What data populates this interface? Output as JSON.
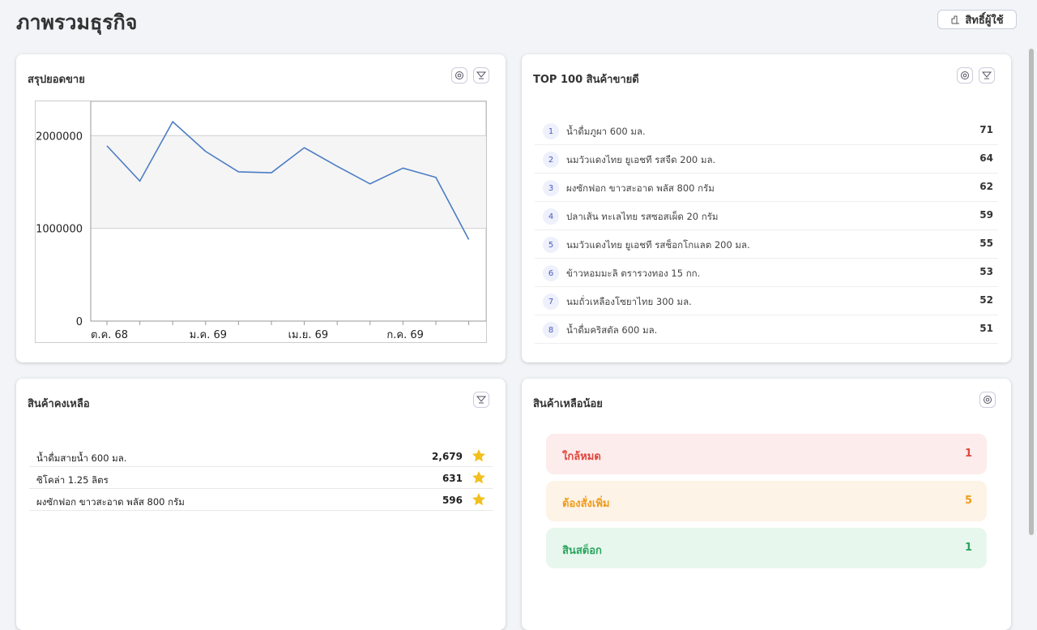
{
  "header": {
    "title": "ภาพรวมธุรกิจ",
    "permission_button": "สิทธิ์ผู้ใช้"
  },
  "sales_summary": {
    "title": "สรุปยอดขาย",
    "chart": {
      "type": "line",
      "categories": [
        "ต.ค. 68",
        null,
        null,
        "ม.ค. 69",
        null,
        null,
        "เม.ย. 69",
        null,
        null,
        "ก.ค. 69",
        null,
        null
      ],
      "values": [
        1890000,
        1510000,
        2150000,
        1830000,
        1610000,
        1600000,
        1870000,
        1670000,
        1480000,
        1650000,
        1550000,
        880000
      ],
      "color": "#4a7cc4",
      "ylim": [
        0,
        2370000
      ],
      "yticks": [
        0,
        1000000,
        2000000
      ],
      "grid": true
    }
  },
  "top_products": {
    "title": "TOP 100 สินค้าขายดี",
    "rows": [
      [
        "1",
        "น้ำดื่มภูผา 600 มล.",
        "71"
      ],
      [
        "2",
        "นมวัวแดงไทย ยูเอชที รสจืด 200 มล.",
        "64"
      ],
      [
        "3",
        "ผงซักฟอก ขาวสะอาด พลัส 800 กรัม",
        "62"
      ],
      [
        "4",
        "ปลาเส้น ทะเลไทย รสซอสเผ็ด 20 กรัม",
        "59"
      ],
      [
        "5",
        "นมวัวแดงไทย ยูเอชที รสช็อกโกแลต 200 มล.",
        "55"
      ],
      [
        "6",
        "ข้าวหอมมะลิ ตรารวงทอง 15 กก.",
        "53"
      ],
      [
        "7",
        "นมถั่วเหลืองโซยาไทย 300 มล.",
        "52"
      ],
      [
        "8",
        "น้ำดื่มคริสตัล 600 มล.",
        "51"
      ]
    ]
  },
  "stock": {
    "title": "สินค้าคงเหลือ",
    "rows": [
      [
        "น้ำดื่มสายน้ำ 600 มล.",
        "2,679"
      ],
      [
        "ซิโคล่า 1.25 ลิตร",
        "631"
      ],
      [
        "ผงซักฟอก ขาวสะอาด พลัส 800 กรัม",
        "596"
      ]
    ]
  },
  "low_stock": {
    "title": "สินค้าเหลือน้อย",
    "rows": [
      [
        "ใกล้หมด",
        "1"
      ],
      [
        "ต้องสั่งเพิ่ม",
        "5"
      ],
      [
        "สินสต็อก",
        "1"
      ]
    ]
  }
}
